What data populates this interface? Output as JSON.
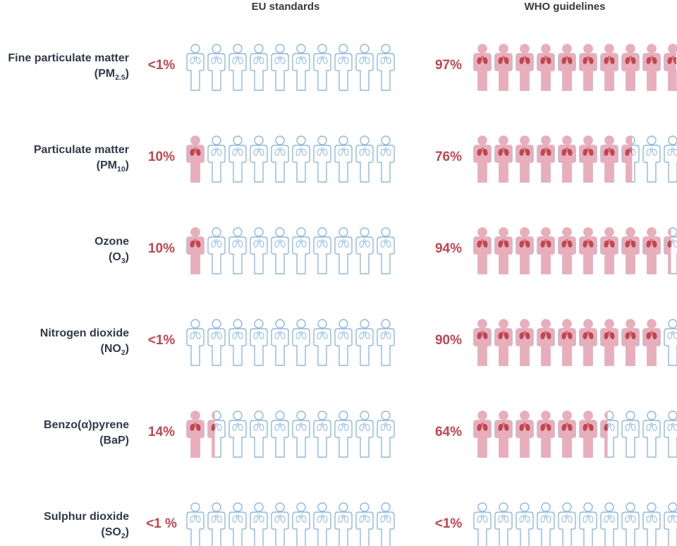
{
  "colors": {
    "exposed_fill": "#e8aebb",
    "lungs": "#c0464f",
    "outline": "#8fb8dc",
    "percent_text": "#c0464f",
    "label_text": "#2f3a48"
  },
  "icon_names": {
    "person_exposed": "person-exposed-icon",
    "person_not_exposed": "person-outline-icon"
  },
  "chart_data": {
    "type": "pictograph",
    "people_per_row": 10,
    "columns": [
      {
        "key": "eu",
        "title": "EU standards"
      },
      {
        "key": "who",
        "title": "WHO guidelines"
      }
    ],
    "rows": [
      {
        "label": "Fine particulate matter",
        "formula": "(PM",
        "sub": "2.5",
        "tail": ")",
        "eu": {
          "text": "<1%",
          "value": 0.5
        },
        "who": {
          "text": "97%",
          "value": 97
        }
      },
      {
        "label": "Particulate matter",
        "formula": "(PM",
        "sub": "10",
        "tail": ")",
        "eu": {
          "text": "10%",
          "value": 10
        },
        "who": {
          "text": "76%",
          "value": 76
        }
      },
      {
        "label": "Ozone",
        "formula": "(O",
        "sub": "3",
        "tail": ")",
        "eu": {
          "text": "10%",
          "value": 10
        },
        "who": {
          "text": "94%",
          "value": 94
        }
      },
      {
        "label": "Nitrogen dioxide",
        "formula": "(NO",
        "sub": "2",
        "tail": ")",
        "eu": {
          "text": "<1%",
          "value": 0.5
        },
        "who": {
          "text": "90%",
          "value": 90
        }
      },
      {
        "label": "Benzo(α)pyrene",
        "formula": "(BaP)",
        "sub": "",
        "tail": "",
        "eu": {
          "text": "14%",
          "value": 14
        },
        "who": {
          "text": "64%",
          "value": 64
        }
      },
      {
        "label": "Sulphur dioxide",
        "formula": "(SO",
        "sub": "2",
        "tail": ")",
        "eu": {
          "text": "<1 %",
          "value": 0.5
        },
        "who": {
          "text": "<1%",
          "value": 0.5
        }
      }
    ]
  }
}
